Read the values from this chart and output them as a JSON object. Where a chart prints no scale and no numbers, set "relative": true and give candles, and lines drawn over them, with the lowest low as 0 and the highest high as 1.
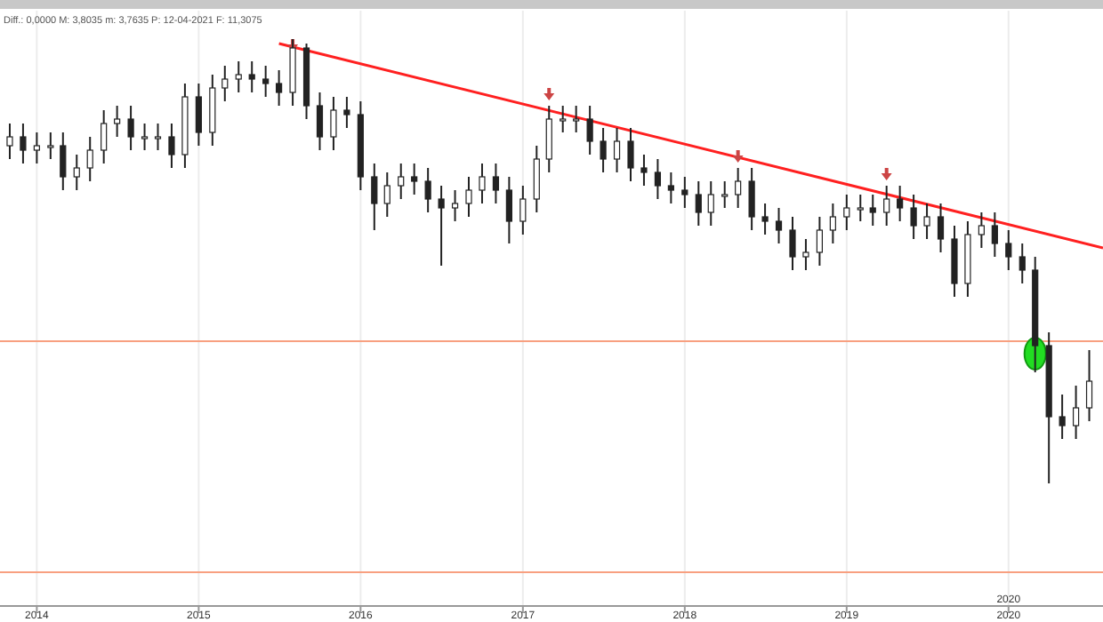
{
  "chart_data": {
    "type": "candlestick",
    "relative": true,
    "x": [
      "2013-11",
      "2013-12",
      "2014-01",
      "2014-02",
      "2014-03",
      "2014-04",
      "2014-05",
      "2014-06",
      "2014-07",
      "2014-08",
      "2014-09",
      "2014-10",
      "2014-11",
      "2014-12",
      "2015-01",
      "2015-02",
      "2015-03",
      "2015-04",
      "2015-05",
      "2015-06",
      "2015-07",
      "2015-08",
      "2015-09",
      "2015-10",
      "2015-11",
      "2015-12",
      "2016-01",
      "2016-02",
      "2016-03",
      "2016-04",
      "2016-05",
      "2016-06",
      "2016-07",
      "2016-08",
      "2016-09",
      "2016-10",
      "2016-11",
      "2016-12",
      "2017-01",
      "2017-02",
      "2017-03",
      "2017-04",
      "2017-05",
      "2017-06",
      "2017-07",
      "2017-08",
      "2017-09",
      "2017-10",
      "2017-11",
      "2017-12",
      "2018-01",
      "2018-02",
      "2018-03",
      "2018-04",
      "2018-05",
      "2018-06",
      "2018-07",
      "2018-08",
      "2018-09",
      "2018-10",
      "2018-11",
      "2018-12",
      "2019-01",
      "2019-02",
      "2019-03",
      "2019-04",
      "2019-05",
      "2019-06",
      "2019-07",
      "2019-08",
      "2019-09",
      "2019-10",
      "2019-11",
      "2019-12",
      "2020-01",
      "2020-02",
      "2020-03",
      "2020-04",
      "2020-05",
      "2020-06",
      "2020-07"
    ],
    "ohlc": [
      [
        0.76,
        0.81,
        0.73,
        0.78
      ],
      [
        0.78,
        0.81,
        0.72,
        0.75
      ],
      [
        0.75,
        0.79,
        0.72,
        0.76
      ],
      [
        0.76,
        0.79,
        0.73,
        0.76
      ],
      [
        0.76,
        0.79,
        0.66,
        0.69
      ],
      [
        0.69,
        0.74,
        0.66,
        0.71
      ],
      [
        0.71,
        0.78,
        0.68,
        0.75
      ],
      [
        0.75,
        0.84,
        0.72,
        0.81
      ],
      [
        0.81,
        0.85,
        0.78,
        0.82
      ],
      [
        0.82,
        0.85,
        0.75,
        0.78
      ],
      [
        0.78,
        0.81,
        0.75,
        0.78
      ],
      [
        0.78,
        0.81,
        0.75,
        0.78
      ],
      [
        0.78,
        0.81,
        0.71,
        0.74
      ],
      [
        0.74,
        0.9,
        0.71,
        0.87
      ],
      [
        0.87,
        0.9,
        0.76,
        0.79
      ],
      [
        0.79,
        0.92,
        0.76,
        0.89
      ],
      [
        0.89,
        0.94,
        0.86,
        0.91
      ],
      [
        0.91,
        0.95,
        0.88,
        0.92
      ],
      [
        0.92,
        0.95,
        0.88,
        0.91
      ],
      [
        0.91,
        0.94,
        0.87,
        0.9
      ],
      [
        0.9,
        0.93,
        0.85,
        0.88
      ],
      [
        0.88,
        1,
        0.85,
        0.98
      ],
      [
        0.98,
        0.99,
        0.82,
        0.85
      ],
      [
        0.85,
        0.88,
        0.75,
        0.78
      ],
      [
        0.78,
        0.87,
        0.75,
        0.84
      ],
      [
        0.84,
        0.87,
        0.8,
        0.83
      ],
      [
        0.83,
        0.86,
        0.66,
        0.69
      ],
      [
        0.69,
        0.72,
        0.57,
        0.63
      ],
      [
        0.63,
        0.7,
        0.6,
        0.67
      ],
      [
        0.67,
        0.72,
        0.64,
        0.69
      ],
      [
        0.69,
        0.72,
        0.65,
        0.68
      ],
      [
        0.68,
        0.71,
        0.61,
        0.64
      ],
      [
        0.64,
        0.67,
        0.49,
        0.62
      ],
      [
        0.62,
        0.66,
        0.59,
        0.63
      ],
      [
        0.63,
        0.69,
        0.6,
        0.66
      ],
      [
        0.66,
        0.72,
        0.63,
        0.69
      ],
      [
        0.69,
        0.72,
        0.63,
        0.66
      ],
      [
        0.66,
        0.69,
        0.54,
        0.59
      ],
      [
        0.59,
        0.67,
        0.56,
        0.64
      ],
      [
        0.64,
        0.76,
        0.61,
        0.73
      ],
      [
        0.73,
        0.85,
        0.7,
        0.82
      ],
      [
        0.82,
        0.85,
        0.79,
        0.82
      ],
      [
        0.82,
        0.85,
        0.79,
        0.82
      ],
      [
        0.82,
        0.85,
        0.74,
        0.77
      ],
      [
        0.77,
        0.8,
        0.7,
        0.73
      ],
      [
        0.73,
        0.8,
        0.7,
        0.77
      ],
      [
        0.77,
        0.8,
        0.68,
        0.71
      ],
      [
        0.71,
        0.74,
        0.67,
        0.7
      ],
      [
        0.7,
        0.73,
        0.64,
        0.67
      ],
      [
        0.67,
        0.7,
        0.63,
        0.66
      ],
      [
        0.66,
        0.69,
        0.62,
        0.65
      ],
      [
        0.65,
        0.68,
        0.58,
        0.61
      ],
      [
        0.61,
        0.68,
        0.58,
        0.65
      ],
      [
        0.65,
        0.68,
        0.62,
        0.65
      ],
      [
        0.65,
        0.71,
        0.62,
        0.68
      ],
      [
        0.68,
        0.71,
        0.57,
        0.6
      ],
      [
        0.6,
        0.63,
        0.56,
        0.59
      ],
      [
        0.59,
        0.62,
        0.54,
        0.57
      ],
      [
        0.57,
        0.6,
        0.48,
        0.51
      ],
      [
        0.51,
        0.55,
        0.48,
        0.52
      ],
      [
        0.52,
        0.6,
        0.49,
        0.57
      ],
      [
        0.57,
        0.63,
        0.54,
        0.6
      ],
      [
        0.6,
        0.65,
        0.57,
        0.62
      ],
      [
        0.62,
        0.65,
        0.59,
        0.62
      ],
      [
        0.62,
        0.65,
        0.58,
        0.61
      ],
      [
        0.61,
        0.67,
        0.58,
        0.64
      ],
      [
        0.64,
        0.67,
        0.59,
        0.62
      ],
      [
        0.62,
        0.65,
        0.55,
        0.58
      ],
      [
        0.58,
        0.63,
        0.55,
        0.6
      ],
      [
        0.6,
        0.63,
        0.52,
        0.55
      ],
      [
        0.55,
        0.58,
        0.42,
        0.45
      ],
      [
        0.45,
        0.59,
        0.42,
        0.56
      ],
      [
        0.56,
        0.61,
        0.53,
        0.58
      ],
      [
        0.58,
        0.61,
        0.51,
        0.54
      ],
      [
        0.54,
        0.57,
        0.48,
        0.51
      ],
      [
        0.51,
        0.54,
        0.45,
        0.48
      ],
      [
        0.48,
        0.51,
        0.25,
        0.31
      ],
      [
        0.31,
        0.34,
        0,
        0.15
      ],
      [
        0.15,
        0.2,
        0.1,
        0.13
      ],
      [
        0.13,
        0.22,
        0.1,
        0.17
      ],
      [
        0.17,
        0.3,
        0.14,
        0.23
      ]
    ],
    "color": "#222222",
    "series": [
      {
        "type": "line",
        "x": [
          "2015-07-01",
          "2020-08-01"
        ],
        "values": [
          0.99,
          0.53
        ],
        "color": "#ff2020"
      }
    ],
    "xlim": [
      "2013-10-10",
      "2020-08-01"
    ],
    "xticks": [
      {
        "value": "2014-01-01",
        "label": "2014"
      },
      {
        "value": "2015-01-01",
        "label": "2015"
      },
      {
        "value": "2016-01-01",
        "label": "2016"
      },
      {
        "value": "2017-01-01",
        "label": "2017"
      },
      {
        "value": "2018-01-01",
        "label": "2018"
      },
      {
        "value": "2019-01-01",
        "label": "2019"
      },
      {
        "value": "2020-01-01",
        "label": "2020"
      }
    ],
    "ref_lines": [
      {
        "axis": "y",
        "value": 0.32,
        "color": "#f8a080"
      },
      {
        "axis": "y",
        "value": -0.2,
        "color": "#f8a080"
      }
    ],
    "grid": "x",
    "annotations": [
      "Diff.: 0,0000  M: 3,8035  m: 3,7635  P: 12-04-2021  F: 11,3075",
      "2020"
    ]
  }
}
